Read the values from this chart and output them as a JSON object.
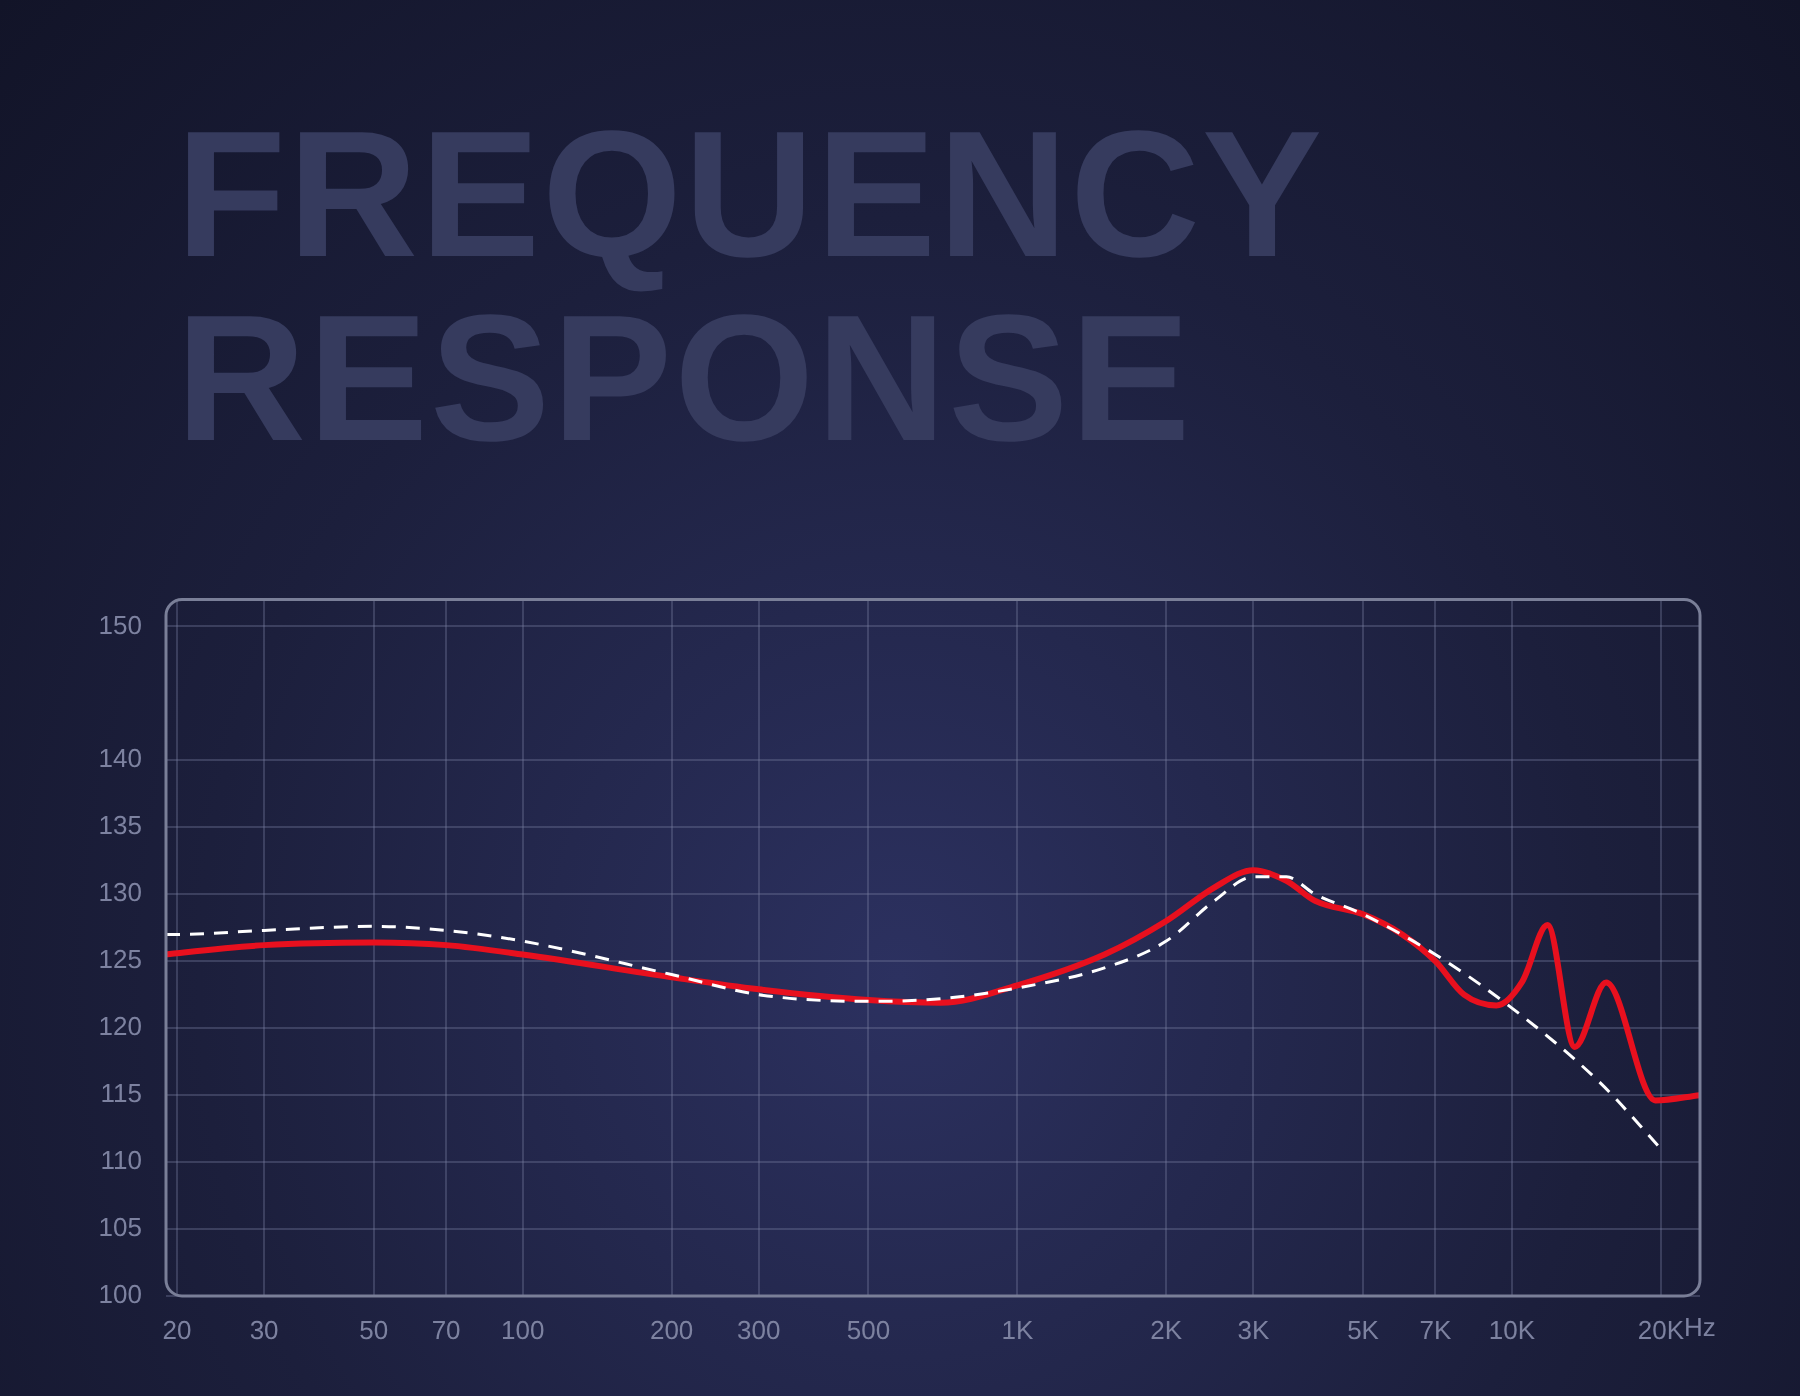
{
  "chart_data": {
    "type": "line",
    "title": "FREQUENCY RESPONSE",
    "xlim": [
      19,
      24000
    ],
    "ylim": [
      100,
      152
    ],
    "xticks": [
      20,
      30,
      50,
      70,
      100,
      200,
      300,
      500,
      {
        "value": 1000,
        "label": "1K"
      },
      {
        "value": 2000,
        "label": "2K"
      },
      {
        "value": 3000,
        "label": "3K"
      },
      {
        "value": 5000,
        "label": "5K"
      },
      {
        "value": 7000,
        "label": "7K"
      },
      {
        "value": 10000,
        "label": "10K"
      },
      {
        "value": 20000,
        "label": "20K"
      }
    ],
    "xlabel": "Hz",
    "yticks": [
      100,
      105,
      110,
      115,
      120,
      125,
      130,
      135,
      140,
      150
    ],
    "log": "x",
    "grid": true,
    "legend": false,
    "marker": "none",
    "series": [
      {
        "color": "#ffffff",
        "line_style": "dashed",
        "x": [
          19,
          20,
          30,
          50,
          70,
          100,
          200,
          300,
          500,
          700,
          1000,
          1500,
          2000,
          2500,
          3000,
          3500,
          4000,
          5000,
          7000,
          10000,
          15000,
          20000
        ],
        "values": [
          127,
          127,
          127.3,
          127.6,
          127.3,
          126.5,
          124,
          122.5,
          122,
          122.2,
          123,
          124.5,
          126.5,
          129.5,
          131.3,
          131.3,
          130,
          128.5,
          125.5,
          121.5,
          116,
          111
        ]
      },
      {
        "color": "#e8101e",
        "line_style": "solid",
        "x": [
          19,
          20,
          30,
          50,
          70,
          100,
          200,
          300,
          500,
          700,
          1000,
          1500,
          2000,
          2500,
          3000,
          3500,
          4000,
          5000,
          6000,
          7000,
          8000,
          9300,
          10500,
          11800,
          13400,
          15500,
          19500,
          24000
        ],
        "values": [
          125.5,
          125.6,
          126.2,
          126.4,
          126.2,
          125.5,
          123.8,
          122.9,
          122.1,
          121.9,
          123.2,
          125.5,
          128,
          130.5,
          131.8,
          131,
          129.5,
          128.5,
          127,
          125,
          122.5,
          121.7,
          123.5,
          127.7,
          118.6,
          123.4,
          114.6,
          115
        ]
      }
    ]
  }
}
